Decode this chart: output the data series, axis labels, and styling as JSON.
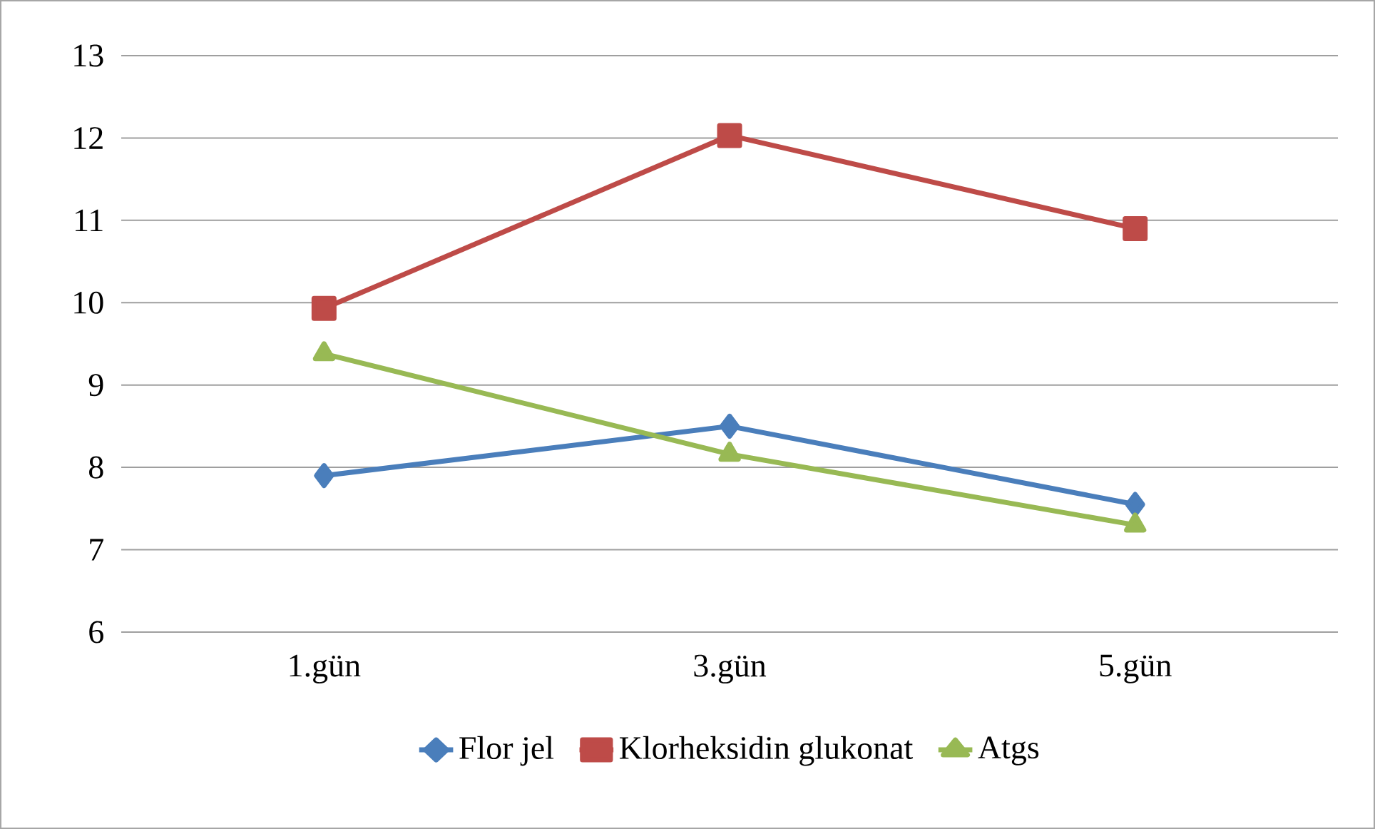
{
  "chart_data": {
    "type": "line",
    "categories": [
      "1.gün",
      "3.gün",
      "5.gün"
    ],
    "series": [
      {
        "name": "Flor jel",
        "color": "#4a7ebb",
        "marker": "diamond",
        "values": [
          7.9,
          8.5,
          7.55
        ]
      },
      {
        "name": "Klorheksidin glukonat",
        "color": "#be4b48",
        "marker": "square",
        "values": [
          9.93,
          12.03,
          10.9
        ]
      },
      {
        "name": "Atgs",
        "color": "#98b954",
        "marker": "triangle",
        "values": [
          9.38,
          8.16,
          7.3
        ]
      }
    ],
    "ylim": [
      6,
      13
    ],
    "yticks": [
      6,
      7,
      8,
      9,
      10,
      11,
      12,
      13
    ],
    "grid": "y",
    "legend": "bottom",
    "line_style": "solid"
  }
}
